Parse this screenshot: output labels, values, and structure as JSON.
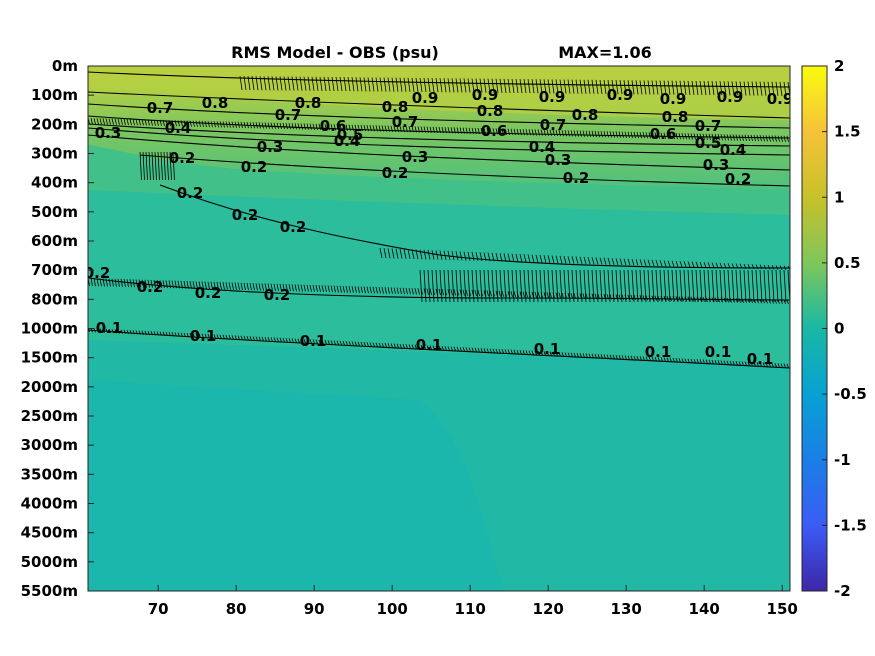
{
  "chart_data": {
    "type": "heatmap",
    "title_left": "RMS Model - OBS (psu)",
    "title_right": "MAX=1.06",
    "x_ticks": [
      "70",
      "80",
      "90",
      "100",
      "110",
      "120",
      "130",
      "140",
      "150"
    ],
    "x_range": [
      61,
      151
    ],
    "y_ticks": [
      "0m",
      "100m",
      "200m",
      "300m",
      "400m",
      "500m",
      "600m",
      "700m",
      "800m",
      "1000m",
      "1500m",
      "2000m",
      "2500m",
      "3000m",
      "3500m",
      "4000m",
      "4500m",
      "5000m",
      "5500m"
    ],
    "colorbar_ticks": [
      "2",
      "1.5",
      "1",
      "0.5",
      "0",
      "-0.5",
      "-1",
      "-1.5",
      "-2"
    ],
    "colorbar_range": [
      -2,
      2
    ],
    "colormap": "parula",
    "colors": {
      "background_field": "#2bbd9c",
      "deep_field": "#1fb7a8",
      "upper_field": "#6fc56c",
      "surface_field": "#b9d13f",
      "contour_line": "#000000"
    },
    "contours": [
      {
        "level": 0.9,
        "labels": [
          "0.9",
          "0.9",
          "0.9",
          "0.9",
          "0.9",
          "0.9",
          "0.9"
        ]
      },
      {
        "level": 0.8,
        "labels": [
          "0.8",
          "0.8",
          "0.8",
          "0.8",
          "0.8",
          "0.8"
        ]
      },
      {
        "level": 0.7,
        "labels": [
          "0.7",
          "0.7",
          "0.7",
          "0.7",
          "0.7"
        ]
      },
      {
        "level": 0.6,
        "labels": [
          "0.6",
          "0.6",
          "0.6"
        ]
      },
      {
        "level": 0.5,
        "labels": [
          "0.5",
          "0.5"
        ]
      },
      {
        "level": 0.4,
        "labels": [
          "0.4",
          "0.4",
          "0.4",
          "0.4"
        ]
      },
      {
        "level": 0.3,
        "labels": [
          "0.3",
          "0.3",
          "0.3",
          "0.3",
          "0.3"
        ]
      },
      {
        "level": 0.2,
        "labels": [
          "0.2",
          "0.2",
          "0.2",
          "0.2",
          "0.2",
          "0.2",
          "0.2",
          "0.2",
          "0.2",
          "0.2",
          "0.2",
          "0.2"
        ]
      },
      {
        "level": 0.1,
        "labels": [
          "0.1",
          "0.1",
          "0.1",
          "0.1",
          "0.1",
          "0.1",
          "0.1",
          "0.1"
        ]
      }
    ]
  }
}
